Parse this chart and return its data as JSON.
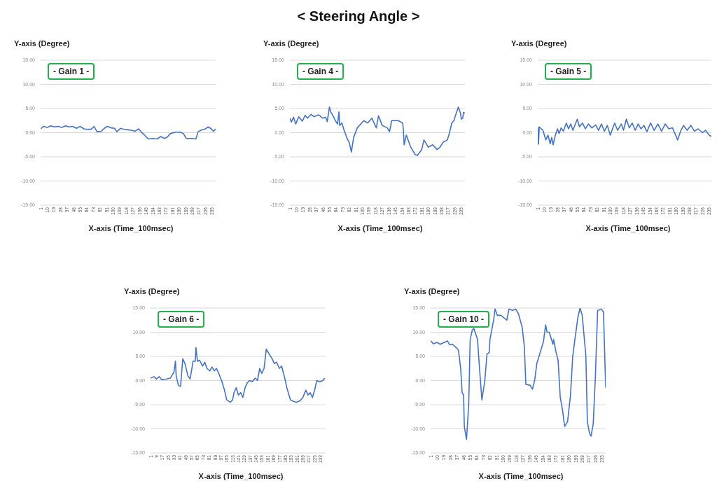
{
  "chart_data": [
    {
      "type": "line",
      "annotations": [
        "< Steering Angle >"
      ],
      "title": "- Gain 1 -",
      "ylabel": "Y-axis (Degree)",
      "xlabel": "X-axis (Time_100msec)",
      "color": "#4472c4",
      "grid": "y",
      "xlim": [
        1,
        240
      ],
      "ylim": [
        -15,
        15
      ],
      "yticks": [
        {
          "value": -15,
          "label": "-15.00"
        },
        {
          "value": -10,
          "label": "-10.00"
        },
        {
          "value": -5,
          "label": "-5.00"
        },
        {
          "value": 0,
          "label": "0.00"
        },
        {
          "value": 5,
          "label": "5.00"
        },
        {
          "value": 10,
          "label": "10.00"
        },
        {
          "value": 15,
          "label": "15.00"
        }
      ],
      "xticks": [
        1,
        10,
        19,
        28,
        37,
        46,
        55,
        64,
        73,
        82,
        91,
        100,
        109,
        118,
        127,
        136,
        145,
        154,
        163,
        172,
        181,
        190,
        199,
        208,
        217,
        226,
        235
      ],
      "x": [
        1,
        5,
        10,
        15,
        20,
        25,
        30,
        35,
        40,
        45,
        50,
        55,
        60,
        65,
        70,
        74,
        78,
        84,
        88,
        92,
        97,
        102,
        105,
        110,
        115,
        120,
        125,
        130,
        135,
        138,
        143,
        148,
        155,
        160,
        165,
        170,
        174,
        178,
        185,
        192,
        196,
        200,
        208,
        213,
        216,
        220,
        225,
        230,
        234,
        237,
        240
      ],
      "values": [
        0.8,
        1.3,
        1.1,
        1.4,
        1.2,
        1.3,
        1.1,
        1.4,
        1.2,
        1.3,
        0.9,
        1.3,
        0.8,
        0.7,
        0.7,
        1.3,
        0.2,
        0.3,
        0.9,
        1.3,
        1.0,
        0.9,
        0.2,
        0.9,
        0.7,
        0.6,
        0.5,
        0.3,
        0.8,
        0.2,
        -0.5,
        -1.3,
        -1.2,
        -1.3,
        -0.8,
        -1.2,
        -0.9,
        -0.2,
        0.1,
        0.1,
        -0.2,
        -1.2,
        -1.2,
        -1.3,
        0.2,
        0.5,
        0.7,
        1.2,
        0.8,
        0.3,
        0.8
      ]
    },
    {
      "type": "line",
      "title": "- Gain 4 -",
      "ylabel": "Y-axis (Degree)",
      "xlabel": "X-axis (Time_100msec)",
      "color": "#4472c4",
      "grid": "y",
      "xlim": [
        1,
        240
      ],
      "ylim": [
        -15,
        15
      ],
      "yticks": [
        {
          "value": -15,
          "label": "-15.00"
        },
        {
          "value": -10,
          "label": "-10.00"
        },
        {
          "value": -5,
          "label": "-5.00"
        },
        {
          "value": 0,
          "label": "0.00"
        },
        {
          "value": 5,
          "label": "5.00"
        },
        {
          "value": 10,
          "label": "10.00"
        },
        {
          "value": 15,
          "label": "15.00"
        }
      ],
      "xticks": [
        1,
        10,
        19,
        28,
        37,
        46,
        55,
        64,
        73,
        82,
        91,
        100,
        109,
        118,
        127,
        136,
        145,
        154,
        163,
        172,
        181,
        190,
        199,
        208,
        217,
        226,
        235
      ],
      "x": [
        1,
        3,
        6,
        9,
        13,
        18,
        22,
        25,
        30,
        34,
        40,
        46,
        50,
        52,
        55,
        57,
        60,
        63,
        66,
        68,
        69,
        72,
        75,
        80,
        82,
        85,
        88,
        93,
        96,
        102,
        107,
        113,
        119,
        122,
        127,
        134,
        137,
        140,
        149,
        155,
        156,
        157,
        160,
        166,
        172,
        175,
        181,
        184,
        190,
        196,
        202,
        206,
        210,
        216,
        219,
        222,
        225,
        228,
        231,
        234,
        235,
        237,
        238,
        240
      ],
      "values": [
        3.0,
        2.2,
        3.2,
        1.8,
        3.3,
        2.4,
        3.6,
        3.0,
        3.8,
        3.3,
        3.7,
        3.0,
        3.2,
        2.3,
        5.3,
        4.2,
        3.5,
        2.5,
        1.8,
        4.3,
        1.5,
        2.0,
        0.5,
        -1.5,
        -2.0,
        -4.0,
        -1.0,
        1.0,
        1.5,
        2.5,
        2.0,
        3.0,
        1.0,
        3.5,
        1.5,
        1.0,
        0.2,
        2.5,
        2.5,
        2.0,
        0.5,
        -2.5,
        -0.5,
        -3.0,
        -4.5,
        -4.7,
        -3.5,
        -1.5,
        -3.0,
        -2.5,
        -3.5,
        -3.0,
        -2.0,
        -1.5,
        0.0,
        2.0,
        2.5,
        4.0,
        5.3,
        4.0,
        2.8,
        3.0,
        4.2,
        4.0
      ]
    },
    {
      "type": "line",
      "title": "- Gain 5 -",
      "ylabel": "Y-axis (Degree)",
      "xlabel": "X-axis (Time_100msec)",
      "color": "#4472c4",
      "grid": "y",
      "xlim": [
        1,
        240
      ],
      "ylim": [
        -15,
        15
      ],
      "yticks": [
        {
          "value": -15,
          "label": "-15.00"
        },
        {
          "value": -10,
          "label": "-10.00"
        },
        {
          "value": -5,
          "label": "-5.00"
        },
        {
          "value": 0,
          "label": "0.00"
        },
        {
          "value": 5,
          "label": "5.00"
        },
        {
          "value": 10,
          "label": "10.00"
        },
        {
          "value": 15,
          "label": "15.00"
        }
      ],
      "xticks": [
        1,
        10,
        19,
        28,
        37,
        46,
        55,
        64,
        73,
        82,
        91,
        100,
        109,
        118,
        127,
        136,
        145,
        154,
        163,
        172,
        181,
        190,
        199,
        208,
        217,
        226,
        235
      ],
      "x": [
        1,
        2,
        3,
        8,
        12,
        15,
        18,
        20,
        22,
        25,
        28,
        30,
        33,
        36,
        40,
        43,
        46,
        49,
        55,
        58,
        62,
        66,
        70,
        75,
        80,
        84,
        88,
        92,
        96,
        100,
        106,
        110,
        115,
        118,
        122,
        126,
        130,
        134,
        138,
        142,
        146,
        150,
        155,
        160,
        165,
        170,
        175,
        180,
        185,
        192,
        196,
        200,
        205,
        210,
        215,
        220,
        226,
        230,
        235,
        238
      ],
      "values": [
        1.2,
        -2.4,
        1.2,
        0.5,
        -1.5,
        -0.5,
        -2.3,
        -1.0,
        -2.5,
        -0.5,
        0.8,
        -0.2,
        1.0,
        0.3,
        2.0,
        0.8,
        1.8,
        0.5,
        2.8,
        1.2,
        2.0,
        0.8,
        1.8,
        1.0,
        1.6,
        0.5,
        1.8,
        0.3,
        1.5,
        -0.5,
        2.0,
        0.5,
        1.8,
        0.5,
        2.8,
        1.0,
        2.0,
        0.5,
        1.8,
        0.8,
        1.5,
        0.2,
        2.0,
        0.5,
        1.8,
        0.3,
        1.8,
        0.8,
        1.0,
        -1.5,
        0.3,
        1.5,
        0.5,
        1.5,
        0.3,
        0.8,
        0.0,
        0.5,
        -0.5,
        -0.8
      ]
    },
    {
      "type": "line",
      "title": "- Gain 6 -",
      "ylabel": "Y-axis (Degree)",
      "xlabel": "X-axis (Time_100msec)",
      "color": "#4472c4",
      "grid": "y",
      "xlim": [
        1,
        240
      ],
      "ylim": [
        -15,
        15
      ],
      "yticks": [
        {
          "value": -15,
          "label": "-15.00"
        },
        {
          "value": -10,
          "label": "-10.00"
        },
        {
          "value": -5,
          "label": "-5.00"
        },
        {
          "value": 0,
          "label": "0.00"
        },
        {
          "value": 5,
          "label": "5.00"
        },
        {
          "value": 10,
          "label": "10.00"
        },
        {
          "value": 15,
          "label": "15.00"
        }
      ],
      "xticks": [
        1,
        9,
        17,
        25,
        33,
        41,
        49,
        57,
        65,
        73,
        81,
        89,
        97,
        105,
        113,
        121,
        129,
        137,
        145,
        153,
        161,
        169,
        177,
        185,
        193,
        201,
        209,
        217,
        225,
        233
      ],
      "x": [
        1,
        6,
        9,
        13,
        16,
        22,
        28,
        32,
        33,
        35,
        36,
        39,
        42,
        45,
        48,
        52,
        55,
        58,
        59,
        62,
        63,
        65,
        68,
        72,
        75,
        78,
        82,
        85,
        88,
        91,
        94,
        98,
        102,
        105,
        110,
        113,
        115,
        118,
        121,
        124,
        127,
        130,
        133,
        136,
        140,
        144,
        147,
        150,
        153,
        156,
        159,
        163,
        167,
        170,
        173,
        177,
        180,
        185,
        187,
        192,
        196,
        200,
        205,
        209,
        213,
        216,
        219,
        222,
        225,
        228,
        232,
        236,
        239
      ],
      "values": [
        0.5,
        0.8,
        0.3,
        0.8,
        0.2,
        0.3,
        0.5,
        1.5,
        1.8,
        4.0,
        1.0,
        -1.0,
        -1.2,
        4.5,
        3.5,
        1.0,
        0.3,
        3.0,
        4.0,
        4.0,
        6.8,
        4.0,
        4.2,
        3.0,
        3.8,
        2.5,
        2.0,
        2.8,
        2.0,
        2.5,
        1.5,
        0.0,
        -2.0,
        -4.0,
        -4.5,
        -4.0,
        -2.5,
        -1.5,
        -3.0,
        -2.5,
        -3.5,
        -1.5,
        -0.5,
        0.0,
        -0.2,
        0.5,
        0.0,
        2.5,
        1.5,
        2.5,
        6.5,
        5.5,
        4.5,
        3.5,
        3.8,
        2.5,
        3.0,
        0.0,
        -1.5,
        -4.0,
        -4.3,
        -4.5,
        -4.2,
        -3.5,
        -2.0,
        -3.0,
        -2.5,
        -3.5,
        -2.0,
        0.0,
        -0.3,
        0.0,
        0.5
      ]
    },
    {
      "type": "line",
      "title": "- Gain 10 -",
      "ylabel": "Y-axis (Degree)",
      "xlabel": "X-axis (Time_100msec)",
      "color": "#4472c4",
      "grid": "y",
      "xlim": [
        1,
        240
      ],
      "ylim": [
        -15,
        15
      ],
      "yticks": [
        {
          "value": -15,
          "label": "-15.00"
        },
        {
          "value": -10,
          "label": "-10.00"
        },
        {
          "value": -5,
          "label": "-5.00"
        },
        {
          "value": 0,
          "label": "0.00"
        },
        {
          "value": 5,
          "label": "5.00"
        },
        {
          "value": 10,
          "label": "10.00"
        },
        {
          "value": 15,
          "label": "15.00"
        }
      ],
      "xticks": [
        1,
        10,
        19,
        28,
        37,
        46,
        55,
        64,
        73,
        82,
        91,
        100,
        109,
        118,
        127,
        136,
        145,
        154,
        163,
        172,
        181,
        190,
        199,
        208,
        217,
        226,
        235
      ],
      "x": [
        1,
        5,
        10,
        14,
        18,
        24,
        27,
        31,
        36,
        39,
        42,
        44,
        46,
        47,
        50,
        53,
        55,
        58,
        60,
        65,
        68,
        71,
        75,
        78,
        81,
        82,
        87,
        89,
        92,
        97,
        101,
        105,
        108,
        113,
        117,
        121,
        126,
        129,
        131,
        137,
        140,
        143,
        146,
        149,
        155,
        158,
        160,
        163,
        168,
        169,
        172,
        175,
        178,
        181,
        184,
        188,
        192,
        195,
        198,
        202,
        205,
        208,
        213,
        215,
        218,
        220,
        223,
        226,
        229,
        234,
        237,
        240
      ],
      "values": [
        8.2,
        7.6,
        7.9,
        7.5,
        7.8,
        8.2,
        7.4,
        7.5,
        6.8,
        6.3,
        2.5,
        -2.5,
        -3.0,
        -9.5,
        -12.2,
        -5.0,
        8.5,
        10.5,
        10.8,
        8.5,
        2.0,
        -4.0,
        0.0,
        5.5,
        5.8,
        8.5,
        12.5,
        14.8,
        13.5,
        13.5,
        13.0,
        12.5,
        14.8,
        14.5,
        14.8,
        13.8,
        11.0,
        7.0,
        -0.8,
        -1.0,
        -1.8,
        0.0,
        3.5,
        5.0,
        8.0,
        11.5,
        10.0,
        10.0,
        7.5,
        8.5,
        6.0,
        4.2,
        -3.5,
        -6.0,
        -9.5,
        -8.5,
        -3.0,
        5.0,
        8.5,
        13.0,
        15.0,
        13.5,
        5.0,
        -8.5,
        -11.0,
        -11.5,
        -9.0,
        1.0,
        14.5,
        14.8,
        14.2,
        -1.5
      ]
    }
  ]
}
